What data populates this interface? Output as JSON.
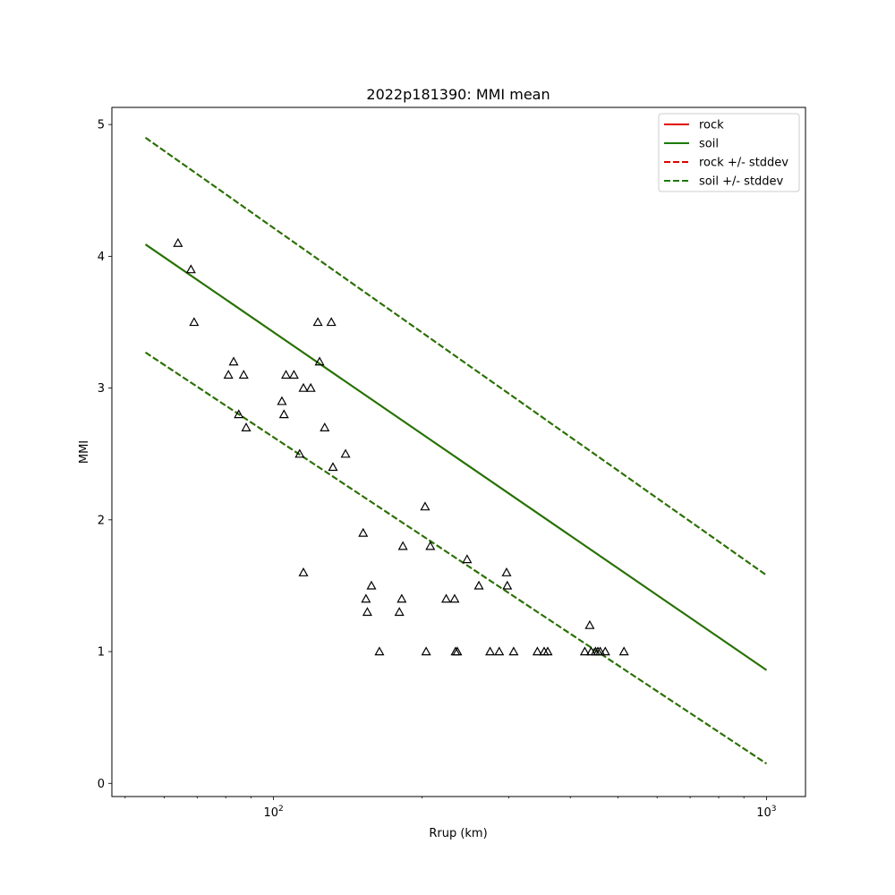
{
  "chart_data": {
    "type": "scatter",
    "title": "2022p181390: MMI mean",
    "xlabel": "Rrup (km)",
    "ylabel": "MMI",
    "xscale": "log",
    "xlim": [
      47,
      1200
    ],
    "ylim": [
      -0.1,
      5.13
    ],
    "grid": false,
    "legend_position": "top-right",
    "x_major_ticks": [
      {
        "value": 100,
        "base": "10",
        "exp": "2"
      },
      {
        "value": 1000,
        "base": "10",
        "exp": "3"
      }
    ],
    "x_minor_ticks": [
      50,
      60,
      70,
      80,
      90,
      200,
      300,
      400,
      500,
      600,
      700,
      800,
      900
    ],
    "y_ticks": [
      {
        "value": 0,
        "label": "0"
      },
      {
        "value": 1,
        "label": "1"
      },
      {
        "value": 2,
        "label": "2"
      },
      {
        "value": 3,
        "label": "3"
      },
      {
        "value": 4,
        "label": "4"
      },
      {
        "value": 5,
        "label": "5"
      }
    ],
    "series": [
      {
        "name": "rock",
        "style": "solid",
        "color": "#e00000",
        "x": [
          55,
          1000
        ],
        "y": [
          4.09,
          0.86
        ]
      },
      {
        "name": "soil",
        "style": "solid",
        "color": "#1a7a00",
        "x": [
          55,
          1000
        ],
        "y": [
          4.09,
          0.86
        ]
      },
      {
        "name": "rock +/- stddev",
        "style": "dashed",
        "color": "#e00000",
        "x": [
          55,
          1000
        ],
        "y_upper": [
          4.9,
          1.58
        ],
        "y_lower": [
          3.27,
          0.15
        ]
      },
      {
        "name": "soil +/- stddev",
        "style": "dashed",
        "color": "#1a7a00",
        "x": [
          55,
          1000
        ],
        "y_upper": [
          4.9,
          1.58
        ],
        "y_lower": [
          3.27,
          0.15
        ]
      }
    ],
    "points": [
      {
        "x": 64,
        "y": 4.1
      },
      {
        "x": 68,
        "y": 3.9
      },
      {
        "x": 69,
        "y": 3.5
      },
      {
        "x": 81,
        "y": 3.1
      },
      {
        "x": 83,
        "y": 3.2
      },
      {
        "x": 87,
        "y": 3.1
      },
      {
        "x": 85,
        "y": 2.8
      },
      {
        "x": 88,
        "y": 2.7
      },
      {
        "x": 104,
        "y": 2.9
      },
      {
        "x": 106,
        "y": 3.1
      },
      {
        "x": 110,
        "y": 3.1
      },
      {
        "x": 105,
        "y": 2.8
      },
      {
        "x": 115,
        "y": 3.0
      },
      {
        "x": 119,
        "y": 3.0
      },
      {
        "x": 123,
        "y": 3.5
      },
      {
        "x": 124,
        "y": 3.2
      },
      {
        "x": 131,
        "y": 3.5
      },
      {
        "x": 127,
        "y": 2.7
      },
      {
        "x": 113,
        "y": 2.5
      },
      {
        "x": 132,
        "y": 2.4
      },
      {
        "x": 140,
        "y": 2.5
      },
      {
        "x": 115,
        "y": 1.6
      },
      {
        "x": 152,
        "y": 1.9
      },
      {
        "x": 154,
        "y": 1.4
      },
      {
        "x": 155,
        "y": 1.3
      },
      {
        "x": 158,
        "y": 1.5
      },
      {
        "x": 164,
        "y": 1.0
      },
      {
        "x": 183,
        "y": 1.8
      },
      {
        "x": 182,
        "y": 1.4
      },
      {
        "x": 180,
        "y": 1.3
      },
      {
        "x": 203,
        "y": 2.1
      },
      {
        "x": 208,
        "y": 1.8
      },
      {
        "x": 204,
        "y": 1.0
      },
      {
        "x": 224,
        "y": 1.4
      },
      {
        "x": 233,
        "y": 1.4
      },
      {
        "x": 234,
        "y": 1.0
      },
      {
        "x": 236,
        "y": 1.0
      },
      {
        "x": 247,
        "y": 1.7
      },
      {
        "x": 261,
        "y": 1.5
      },
      {
        "x": 275,
        "y": 1.0
      },
      {
        "x": 287,
        "y": 1.0
      },
      {
        "x": 297,
        "y": 1.6
      },
      {
        "x": 298,
        "y": 1.5
      },
      {
        "x": 307,
        "y": 1.0
      },
      {
        "x": 343,
        "y": 1.0
      },
      {
        "x": 354,
        "y": 1.0
      },
      {
        "x": 360,
        "y": 1.0
      },
      {
        "x": 428,
        "y": 1.0
      },
      {
        "x": 438,
        "y": 1.2
      },
      {
        "x": 441,
        "y": 1.0
      },
      {
        "x": 450,
        "y": 1.0
      },
      {
        "x": 455,
        "y": 1.0
      },
      {
        "x": 460,
        "y": 1.0
      },
      {
        "x": 471,
        "y": 1.0
      },
      {
        "x": 514,
        "y": 1.0
      }
    ]
  }
}
